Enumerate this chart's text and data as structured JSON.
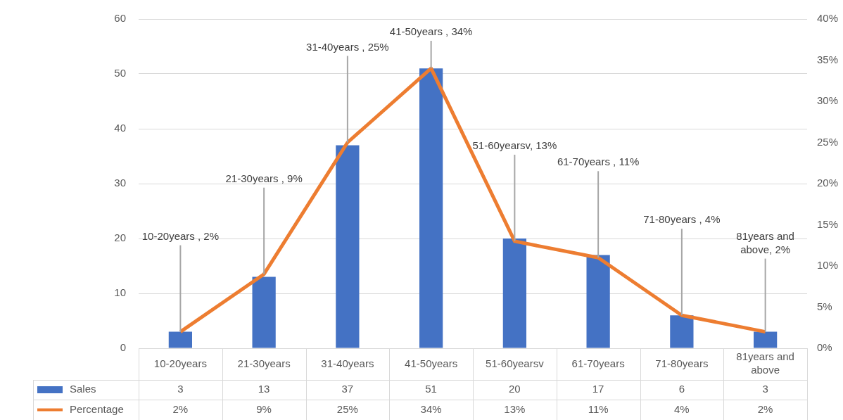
{
  "chart_data": {
    "type": "bar",
    "categories": [
      "10-20years",
      "21-30years",
      "31-40years",
      "41-50years",
      "51-60yearsv",
      "61-70years",
      "71-80years",
      "81years and above"
    ],
    "series": [
      {
        "name": "Sales",
        "color": "#4472c4",
        "values": [
          3,
          13,
          37,
          51,
          20,
          17,
          6,
          3
        ],
        "value_labels": [
          "3",
          "13",
          "37",
          "51",
          "20",
          "17",
          "6",
          "3"
        ]
      },
      {
        "name": "Percentage",
        "type": "line",
        "axis": "y2",
        "color": "#ed7d31",
        "values": [
          2,
          9,
          25,
          34,
          13,
          11,
          4,
          2
        ],
        "value_labels": [
          "2%",
          "9%",
          "25%",
          "34%",
          "13%",
          "11%",
          "4%",
          "2%"
        ]
      }
    ],
    "ylim": [
      0,
      60
    ],
    "yticks": [
      0,
      10,
      20,
      30,
      40,
      50,
      60
    ],
    "y2lim": [
      0,
      40
    ],
    "y2ticks": [
      {
        "value": 0,
        "label": "0%"
      },
      {
        "value": 5,
        "label": "5%"
      },
      {
        "value": 10,
        "label": "10%"
      },
      {
        "value": 15,
        "label": "15%"
      },
      {
        "value": 20,
        "label": "20%"
      },
      {
        "value": 25,
        "label": "25%"
      },
      {
        "value": 30,
        "label": "30%"
      },
      {
        "value": 35,
        "label": "35%"
      },
      {
        "value": 40,
        "label": "40%"
      }
    ],
    "annotations": [
      {
        "text": "10-20years , 2%",
        "x": "10-20years",
        "y": 3
      },
      {
        "text": "21-30years , 9%",
        "x": "21-30years",
        "y": 13.5
      },
      {
        "text": "31-40years , 25%",
        "x": "31-40years",
        "y": 37.5
      },
      {
        "text": "41-50years , 34%",
        "x": "41-50years",
        "y": 51
      },
      {
        "text": "51-60yearsv, 13%",
        "x": "51-60yearsv",
        "y": 19.5
      },
      {
        "text": "61-70years , 11%",
        "x": "61-70years",
        "y": 16.5
      },
      {
        "text": "71-80years , 4%",
        "x": "71-80years",
        "y": 6
      },
      {
        "text": "81years and above, 2%",
        "x": "81years and above",
        "y": 3
      }
    ],
    "grid": "y",
    "legend": "bottom",
    "marker": "none",
    "line_style": "solid"
  }
}
